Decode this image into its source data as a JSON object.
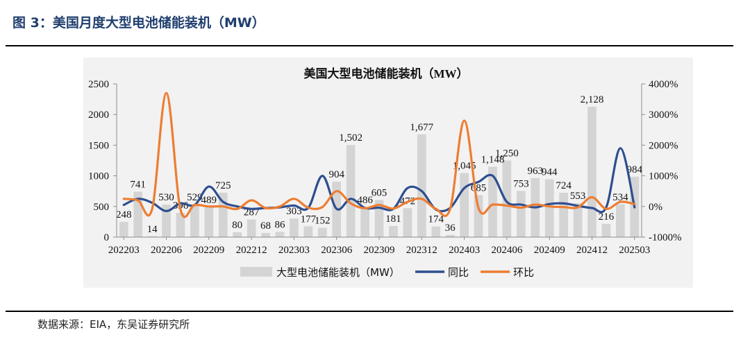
{
  "caption": "图 3：美国月度大型电池储能装机（MW）",
  "source": "数据来源：EIA，东吴证券研究所",
  "colors": {
    "bar": "#D4D4D4",
    "yoy": "#2E4E8F",
    "mom": "#ED7D31",
    "caption": "#1F3E6E"
  },
  "chart_data": {
    "type": "bar",
    "title": "美国大型电池储能装机（MW）",
    "categories": [
      "202203",
      "202204",
      "202205",
      "202206",
      "202207",
      "202208",
      "202209",
      "202210",
      "202211",
      "202212",
      "202301",
      "202302",
      "202303",
      "202304",
      "202305",
      "202306",
      "202307",
      "202308",
      "202309",
      "202310",
      "202311",
      "202312",
      "202401",
      "202402",
      "202403",
      "202404",
      "202405",
      "202406",
      "202407",
      "202408",
      "202409",
      "202410",
      "202411",
      "202412",
      "202501",
      "202502",
      "202503"
    ],
    "x_tick_labels": [
      "202203",
      "202206",
      "202209",
      "202212",
      "202303",
      "202306",
      "202309",
      "202312",
      "202403",
      "202406",
      "202409",
      "202412",
      "202503"
    ],
    "y_left": {
      "ylim": [
        0,
        2500
      ],
      "ticks": [
        "0",
        "500",
        "1000",
        "1500",
        "2000",
        "2500"
      ]
    },
    "y_right": {
      "ylim": [
        -1000,
        4000
      ],
      "ticks": [
        "-1000%",
        "0%",
        "1000%",
        "2000%",
        "3000%",
        "4000%"
      ]
    },
    "grid": false,
    "legend_position": "bottom",
    "series": [
      {
        "name": "大型电池储能装机（MW）",
        "type": "bar",
        "axis": "left",
        "values": [
          248,
          741,
          14,
          530,
          396,
          529,
          489,
          725,
          80,
          287,
          68,
          86,
          303,
          177,
          152,
          904,
          1502,
          486,
          605,
          181,
          472,
          1677,
          174,
          36,
          1045,
          685,
          1148,
          1250,
          753,
          963,
          944,
          724,
          553,
          2128,
          216,
          534,
          984
        ],
        "labels": [
          "248",
          "741",
          "14",
          "530",
          "396",
          "529",
          "489",
          "725",
          "80",
          "287",
          "68",
          "86",
          "303",
          "177",
          "152",
          "904",
          "1,502",
          "486",
          "605",
          "181",
          "472",
          "1,677",
          "174",
          "36",
          "1,045",
          "685",
          "1,148",
          "1,250",
          "753",
          "963",
          "944",
          "724",
          "553",
          "2,128",
          "216",
          "534",
          "984"
        ]
      },
      {
        "name": "同比",
        "type": "line",
        "axis": "right",
        "values": [
          50,
          250,
          120,
          -150,
          100,
          50,
          650,
          150,
          0,
          -80,
          -50,
          -30,
          30,
          -50,
          1000,
          -80,
          250,
          -50,
          -40,
          -80,
          600,
          500,
          -100,
          -50,
          600,
          800,
          1000,
          150,
          60,
          -30,
          80,
          100,
          20,
          -50,
          -30,
          1900,
          -30
        ]
      },
      {
        "name": "环比",
        "type": "line",
        "axis": "right",
        "values": [
          250,
          200,
          -80,
          3700,
          -100,
          50,
          0,
          0,
          -80,
          200,
          -50,
          0,
          250,
          -40,
          -20,
          500,
          100,
          -60,
          50,
          -70,
          150,
          250,
          -80,
          -80,
          2800,
          -50,
          60,
          30,
          -40,
          60,
          0,
          -20,
          -30,
          300,
          -80,
          150,
          80
        ]
      }
    ]
  }
}
